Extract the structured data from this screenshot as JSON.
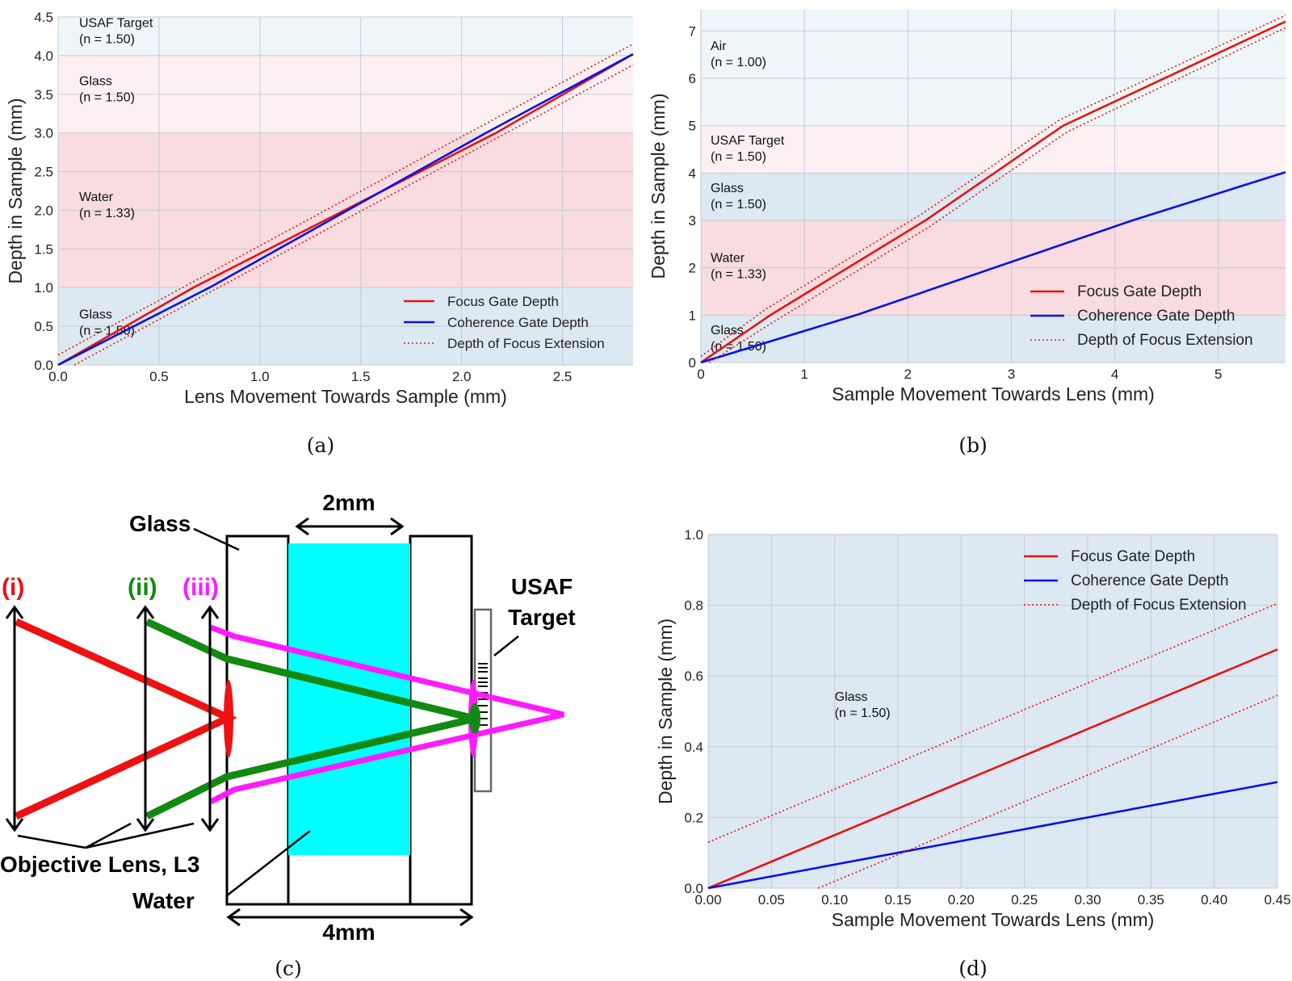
{
  "captions": {
    "a": "(a)",
    "b": "(b)",
    "c": "(c)",
    "d": "(d)"
  },
  "legend": {
    "focus": "Focus Gate Depth",
    "coherence": "Coherence Gate Depth",
    "dof": "Depth of Focus Extension"
  },
  "colors": {
    "focus": "#e8130f",
    "coherence": "#0b10e8",
    "dof": "#e8130f"
  },
  "chart_data": [
    {
      "id": "a",
      "type": "line",
      "xlabel": "Lens Movement Towards Sample (mm)",
      "ylabel": "Depth in Sample (mm)",
      "xlim": [
        0,
        2.85
      ],
      "ylim": [
        0,
        4.5
      ],
      "xticks": [
        {
          "v": 0,
          "t": "0.0"
        },
        {
          "v": 0.5,
          "t": "0.5"
        },
        {
          "v": 1.0,
          "t": "1.0"
        },
        {
          "v": 1.5,
          "t": "1.5"
        },
        {
          "v": 2.0,
          "t": "2.0"
        },
        {
          "v": 2.5,
          "t": "2.5"
        }
      ],
      "yticks": [
        {
          "v": 0,
          "t": "0.0"
        },
        {
          "v": 0.5,
          "t": "0.5"
        },
        {
          "v": 1.0,
          "t": "1.0"
        },
        {
          "v": 1.5,
          "t": "1.5"
        },
        {
          "v": 2.0,
          "t": "2.0"
        },
        {
          "v": 2.5,
          "t": "2.5"
        },
        {
          "v": 3.0,
          "t": "3.0"
        },
        {
          "v": 3.5,
          "t": "3.5"
        },
        {
          "v": 4.0,
          "t": "4.0"
        },
        {
          "v": 4.5,
          "t": "4.5"
        }
      ],
      "grid": true,
      "legend_position": "lower-right",
      "regions": [
        {
          "y0": 0,
          "y1": 1,
          "color": "#dce8f2",
          "label": "Glass",
          "label2": "(n = 1.50)",
          "ly": 0.6
        },
        {
          "y0": 1,
          "y1": 3,
          "color": "#f8dcdf",
          "label": "Water",
          "label2": "(n = 1.33)",
          "ly": 2.12
        },
        {
          "y0": 3,
          "y1": 4,
          "color": "#fdf0f3",
          "label": "Glass",
          "label2": "(n = 1.50)",
          "ly": 3.62
        },
        {
          "y0": 4,
          "y1": 4.5,
          "color": "#eef6f9",
          "label": "USAF Target",
          "label2": "(n = 1.50)",
          "ly": 4.37
        }
      ],
      "series": [
        {
          "role": "focus",
          "x": [
            0,
            0.67,
            2.17,
            2.85
          ],
          "y": [
            0,
            1.0,
            3.0,
            4.02
          ]
        },
        {
          "role": "coherence",
          "x": [
            0,
            0.75,
            2.12,
            2.85
          ],
          "y": [
            0,
            1.0,
            3.0,
            4.02
          ]
        },
        {
          "role": "dof",
          "x": [
            0,
            2.85
          ],
          "y": [
            0.13,
            4.15
          ]
        },
        {
          "role": "dof",
          "x": [
            0.08,
            2.85
          ],
          "y": [
            0,
            3.88
          ]
        }
      ]
    },
    {
      "id": "b",
      "type": "line",
      "xlabel": "Sample Movement Towards Lens (mm)",
      "ylabel": "Depth in Sample (mm)",
      "xlim": [
        0,
        5.65
      ],
      "ylim": [
        0,
        7.45
      ],
      "xticks": [
        {
          "v": 0,
          "t": "0"
        },
        {
          "v": 1,
          "t": "1"
        },
        {
          "v": 2,
          "t": "2"
        },
        {
          "v": 3,
          "t": "3"
        },
        {
          "v": 4,
          "t": "4"
        },
        {
          "v": 5,
          "t": "5"
        }
      ],
      "yticks": [
        {
          "v": 0,
          "t": "0"
        },
        {
          "v": 1,
          "t": "1"
        },
        {
          "v": 2,
          "t": "2"
        },
        {
          "v": 3,
          "t": "3"
        },
        {
          "v": 4,
          "t": "4"
        },
        {
          "v": 5,
          "t": "5"
        },
        {
          "v": 6,
          "t": "6"
        },
        {
          "v": 7,
          "t": "7"
        }
      ],
      "grid": true,
      "legend_position": "lower-right",
      "regions": [
        {
          "y0": 0,
          "y1": 1,
          "color": "#dce8f2",
          "label": "Glass",
          "label2": "(n = 1.50)",
          "ly": 0.6
        },
        {
          "y0": 1,
          "y1": 3,
          "color": "#f8dcdf",
          "label": "Water",
          "label2": "(n = 1.33)",
          "ly": 2.12
        },
        {
          "y0": 3,
          "y1": 4,
          "color": "#dce8f2",
          "label": "Glass",
          "label2": "(n = 1.50)",
          "ly": 3.6
        },
        {
          "y0": 4,
          "y1": 5,
          "color": "#fdf0f3",
          "label": "USAF Target",
          "label2": "(n = 1.50)",
          "ly": 4.6
        },
        {
          "y0": 5,
          "y1": 7.45,
          "color": "#eef6f9",
          "label": "Air",
          "label2": "(n = 1.00)",
          "ly": 6.6
        }
      ],
      "series": [
        {
          "role": "focus",
          "x": [
            0,
            0.67,
            2.17,
            3.5,
            5.65
          ],
          "y": [
            0,
            1.0,
            3.0,
            5.0,
            7.2
          ]
        },
        {
          "role": "coherence",
          "x": [
            0,
            1.5,
            4.17,
            5.65
          ],
          "y": [
            0,
            1.0,
            3.0,
            4.02
          ]
        },
        {
          "role": "dof",
          "x": [
            0,
            0.63,
            2.13,
            3.47,
            5.65
          ],
          "y": [
            0.13,
            1.13,
            3.13,
            5.13,
            7.33
          ]
        },
        {
          "role": "dof",
          "x": [
            0.08,
            0.71,
            2.21,
            3.54,
            5.65
          ],
          "y": [
            0,
            0.87,
            2.87,
            4.87,
            7.07
          ]
        }
      ]
    },
    {
      "id": "d",
      "type": "line",
      "xlabel": "Sample Movement Towards Lens (mm)",
      "ylabel": "Depth in Sample (mm)",
      "xlim": [
        0,
        0.45
      ],
      "ylim": [
        0,
        1.0
      ],
      "xticks": [
        {
          "v": 0,
          "t": "0.00"
        },
        {
          "v": 0.05,
          "t": "0.05"
        },
        {
          "v": 0.1,
          "t": "0.10"
        },
        {
          "v": 0.15,
          "t": "0.15"
        },
        {
          "v": 0.2,
          "t": "0.20"
        },
        {
          "v": 0.25,
          "t": "0.25"
        },
        {
          "v": 0.3,
          "t": "0.30"
        },
        {
          "v": 0.35,
          "t": "0.35"
        },
        {
          "v": 0.4,
          "t": "0.40"
        },
        {
          "v": 0.45,
          "t": "0.45"
        }
      ],
      "yticks": [
        {
          "v": 0,
          "t": "0.0"
        },
        {
          "v": 0.2,
          "t": "0.2"
        },
        {
          "v": 0.4,
          "t": "0.4"
        },
        {
          "v": 0.6,
          "t": "0.6"
        },
        {
          "v": 0.8,
          "t": "0.8"
        },
        {
          "v": 1.0,
          "t": "1.0"
        }
      ],
      "grid": true,
      "legend_position": "upper-right",
      "regions": [
        {
          "y0": 0,
          "y1": 1.0,
          "color": "#dce8f2",
          "label": "Glass",
          "label2": "(n = 1.50)",
          "ly": 0.53,
          "lx": 0.1
        }
      ],
      "series": [
        {
          "role": "focus",
          "x": [
            0,
            0.45
          ],
          "y": [
            0,
            0.675
          ]
        },
        {
          "role": "coherence",
          "x": [
            0,
            0.15,
            0.45
          ],
          "y": [
            0,
            0.1,
            0.3
          ]
        },
        {
          "role": "dof",
          "x": [
            0,
            0.45
          ],
          "y": [
            0.13,
            0.805
          ]
        },
        {
          "role": "dof",
          "x": [
            0.087,
            0.45
          ],
          "y": [
            0,
            0.545
          ]
        }
      ]
    }
  ],
  "diagram": {
    "labels": {
      "glass": "Glass",
      "width_2": "2mm",
      "width_4": "4mm",
      "lens_i": "(i)",
      "lens_ii": "(ii)",
      "lens_iii": "(iii)",
      "usaf_1": "USAF",
      "usaf_2": "Target",
      "objective": "Objective Lens, L3",
      "water": "Water"
    },
    "colors": {
      "i": "#ee1111",
      "ii": "#128a12",
      "iii": "#ff1aff",
      "water": "#00ffff"
    }
  }
}
